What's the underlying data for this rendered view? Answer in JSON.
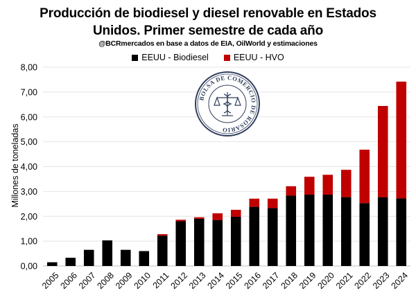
{
  "chart_data": {
    "type": "bar",
    "stacked": true,
    "title": "Producción de biodiesel y diesel renovable en Estados Unidos. Primer semestre de cada año",
    "title_lines": [
      "Producción de biodiesel y diesel renovable en Estados",
      "Unidos. Primer semestre de cada año"
    ],
    "subtitle": "@BCRmercados en base a datos de EIA, OilWorld y estimaciones",
    "xlabel": "",
    "ylabel": "Millones de toneladas",
    "ylim": [
      0,
      8
    ],
    "yticks": [
      "0,00",
      "1,00",
      "2,00",
      "3,00",
      "4,00",
      "5,00",
      "6,00",
      "7,00",
      "8,00"
    ],
    "grid": true,
    "legend_position": "top",
    "categories": [
      "2005",
      "2006",
      "2007",
      "2008",
      "2009",
      "2010",
      "2011",
      "2012",
      "2013",
      "2014",
      "2015",
      "2016",
      "2017",
      "2018",
      "2019",
      "2020",
      "2021",
      "2022",
      "2023",
      "2024"
    ],
    "series": [
      {
        "name": "EEUU - Biodiesel",
        "color": "#000000",
        "values": [
          0.15,
          0.33,
          0.65,
          1.03,
          0.65,
          0.6,
          1.22,
          1.8,
          1.9,
          1.85,
          1.98,
          2.38,
          2.33,
          2.83,
          2.87,
          2.87,
          2.77,
          2.53,
          2.77,
          2.72
        ]
      },
      {
        "name": "EEUU - HVO",
        "color": "#c00000",
        "values": [
          0,
          0,
          0,
          0,
          0,
          0,
          0.06,
          0.06,
          0.06,
          0.27,
          0.28,
          0.33,
          0.38,
          0.38,
          0.72,
          0.8,
          1.1,
          2.15,
          3.67,
          4.7
        ]
      }
    ]
  },
  "logo": {
    "text": "BOLSA DE COMERCIO DE ROSARIO",
    "icon": "caduceus-scales-emblem"
  }
}
